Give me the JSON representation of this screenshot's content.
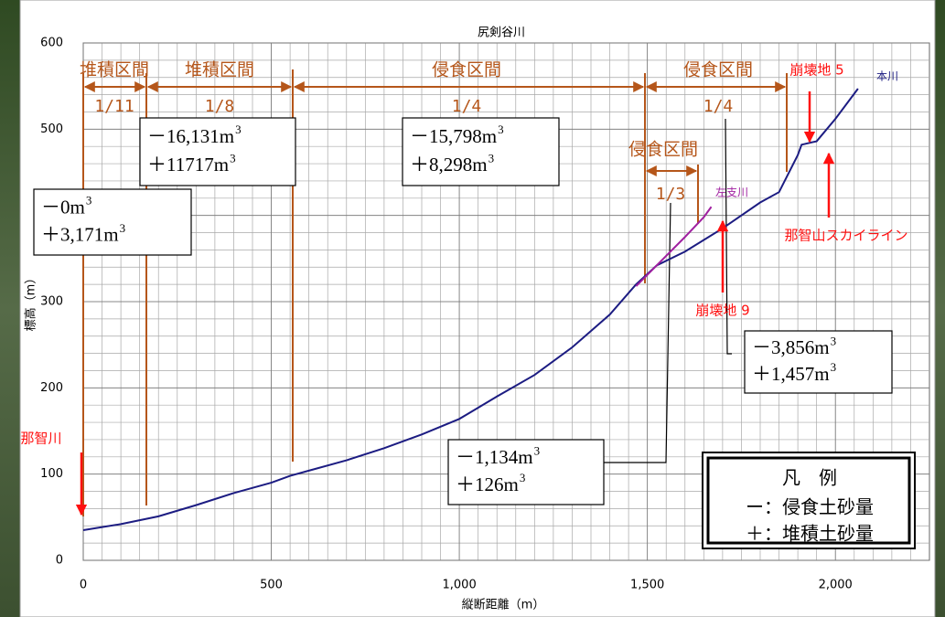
{
  "chart_data": {
    "type": "line",
    "title": "尻剣谷川",
    "x_label": "縦断距離（m）",
    "y_label": "標高（m）",
    "xlim": [
      0,
      2250
    ],
    "ylim": [
      0,
      600
    ],
    "xticks": [
      0,
      500,
      {
        "value": 1000,
        "label": "1,000"
      },
      {
        "value": 1500,
        "label": "1,500"
      },
      {
        "value": 2000,
        "label": "2,000"
      }
    ],
    "yticks": [
      0,
      100,
      200,
      300,
      400,
      500,
      600
    ],
    "grid": true,
    "series": [
      {
        "name": "本川",
        "color": "#1c1c82",
        "x": [
          0,
          100,
          200,
          300,
          400,
          500,
          550,
          600,
          700,
          800,
          900,
          1000,
          1100,
          1200,
          1300,
          1400,
          1470,
          1525,
          1600,
          1700,
          1800,
          1850,
          1900,
          1910,
          1950,
          2000,
          2060
        ],
        "values": [
          35,
          42,
          51,
          64,
          78,
          90,
          98,
          104,
          116,
          130,
          146,
          164,
          190,
          215,
          247,
          285,
          320,
          342,
          358,
          385,
          415,
          427,
          470,
          482,
          486,
          512,
          547
        ]
      },
      {
        "name": "左支川",
        "color": "#a020a0",
        "x": [
          1470,
          1520,
          1600,
          1650,
          1670
        ],
        "values": [
          318,
          340,
          375,
          398,
          410
        ]
      }
    ],
    "sections": [
      {
        "label": "堆積区間",
        "ratio": "1/11"
      },
      {
        "label": "堆積区間",
        "ratio": "1/8"
      },
      {
        "label": "侵食区間",
        "ratio": "1/4"
      },
      {
        "label": "侵食区間",
        "ratio": "1/4"
      },
      {
        "label": "侵食区間",
        "ratio": "1/3"
      }
    ],
    "superscript": "3",
    "volumes": [
      {
        "minus": "－0m",
        "plus": "＋3,171m"
      },
      {
        "minus": "－16,131m",
        "plus": "＋11717m"
      },
      {
        "minus": "－15,798m",
        "plus": "＋8,298m"
      },
      {
        "minus": "－3,856m",
        "plus": "＋1,457m"
      },
      {
        "minus": "－1,134m",
        "plus": "＋126m"
      }
    ],
    "annotations": [
      "崩壊地 5",
      "那智山スカイライン",
      "崩壊地 9",
      "那智川"
    ],
    "legend": {
      "title": "凡　例",
      "items": [
        "ー：侵食土砂量",
        "＋：堆積土砂量"
      ]
    }
  }
}
